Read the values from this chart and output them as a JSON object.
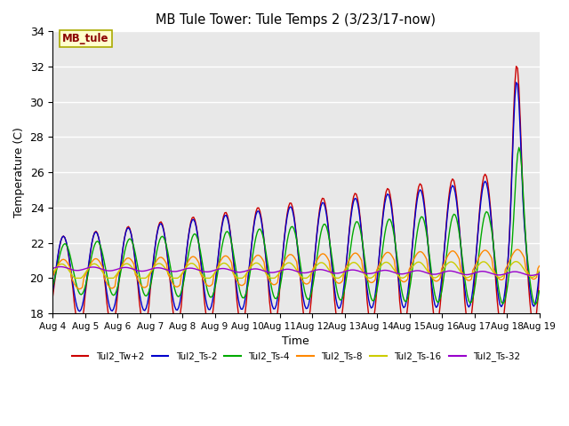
{
  "title": "MB Tule Tower: Tule Temps 2 (3/23/17-now)",
  "xlabel": "Time",
  "ylabel": "Temperature (C)",
  "ylim": [
    18,
    34
  ],
  "yticks": [
    18,
    20,
    22,
    24,
    26,
    28,
    30,
    32,
    34
  ],
  "xlim_days": 15,
  "xtick_labels": [
    "Aug 4",
    "Aug 5",
    "Aug 6",
    "Aug 7",
    "Aug 8",
    "Aug 9",
    "Aug 10",
    "Aug 11",
    "Aug 12",
    "Aug 13",
    "Aug 14",
    "Aug 15",
    "Aug 16",
    "Aug 17",
    "Aug 18",
    "Aug 19"
  ],
  "bg_color": "#e8e8e8",
  "fig_color": "#ffffff",
  "annotation_text": "MB_tule",
  "series_order": [
    "Tul2_Tw+2",
    "Tul2_Ts-2",
    "Tul2_Ts-4",
    "Tul2_Ts-8",
    "Tul2_Ts-16",
    "Tul2_Ts-32"
  ],
  "colors": {
    "Tul2_Tw+2": "#cc0000",
    "Tul2_Ts-2": "#0000cc",
    "Tul2_Ts-4": "#00aa00",
    "Tul2_Ts-8": "#ff8800",
    "Tul2_Ts-16": "#cccc00",
    "Tul2_Ts-32": "#9900cc"
  },
  "lw": 1.0
}
